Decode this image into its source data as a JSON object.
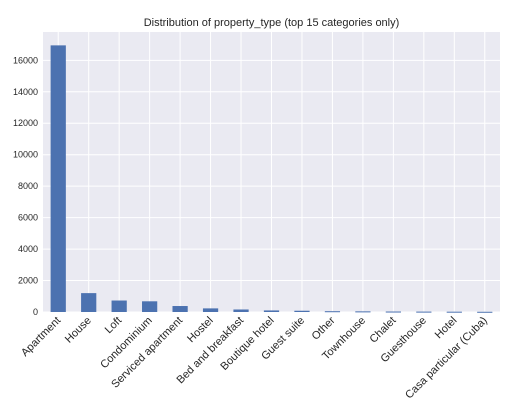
{
  "chart_data": {
    "type": "bar",
    "title": "Distribution of property_type (top 15 categories only)",
    "xlabel": "",
    "ylabel": "",
    "categories": [
      "Apartment",
      "House",
      "Loft",
      "Condominium",
      "Serviced apartment",
      "Hostel",
      "Bed and breakfast",
      "Boutique hotel",
      "Guest suite",
      "Other",
      "Townhouse",
      "Chalet",
      "Guesthouse",
      "Hotel",
      "Casa particular (Cuba)"
    ],
    "values": [
      16950,
      1200,
      730,
      680,
      380,
      230,
      160,
      100,
      80,
      50,
      40,
      30,
      25,
      20,
      15
    ],
    "ylim": [
      0,
      17800
    ],
    "yticks": [
      0,
      2000,
      4000,
      6000,
      8000,
      10000,
      12000,
      14000,
      16000
    ],
    "grid": true,
    "legend": "none",
    "colors": {
      "bar": "#4c72b0",
      "plot_bg": "#eaeaf2",
      "grid": "#ffffff",
      "text": "#262626"
    }
  }
}
